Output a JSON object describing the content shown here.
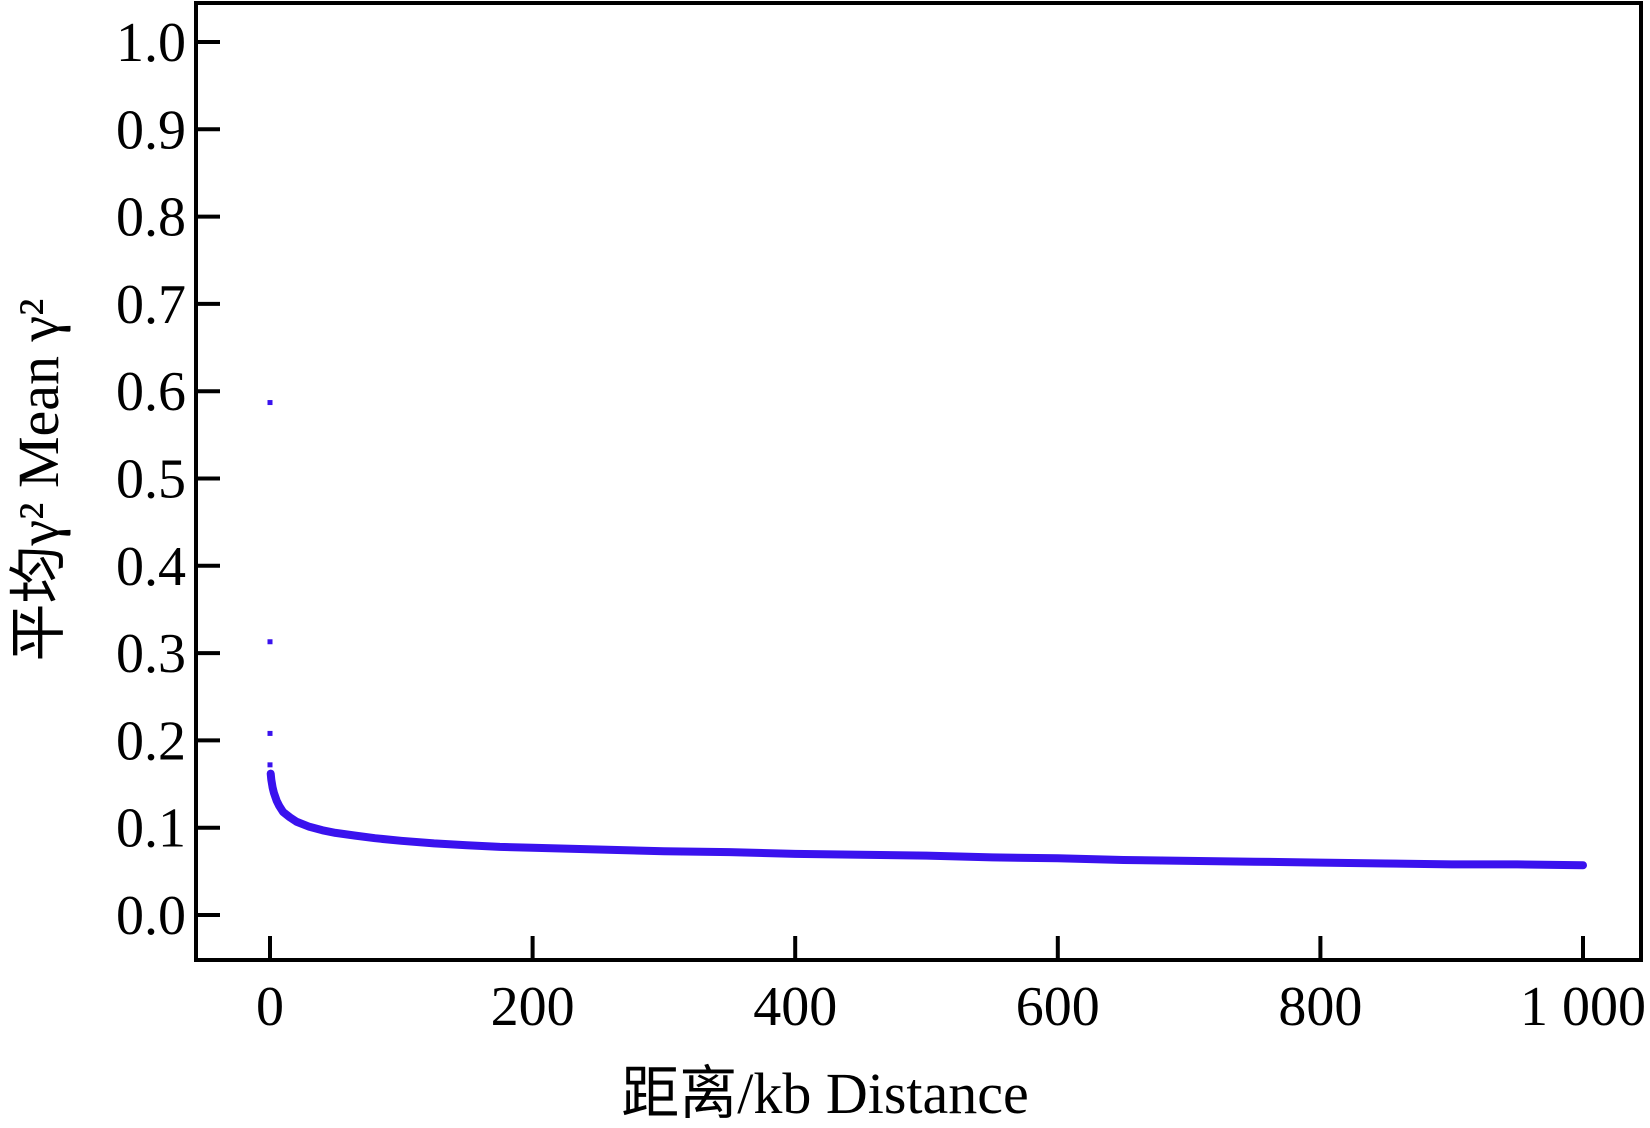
{
  "chart_data": {
    "type": "scatter",
    "title": "",
    "xlabel": "距离/kb Distance",
    "ylabel": "平均γ² Mean γ²",
    "xlim": [
      -57,
      1045
    ],
    "ylim": [
      -0.05,
      1.05
    ],
    "xticks": [
      0,
      200,
      400,
      600,
      800,
      1000
    ],
    "xtick_labels": [
      "0",
      "200",
      "400",
      "600",
      "800",
      "1 000"
    ],
    "yticks": [
      0.0,
      0.1,
      0.2,
      0.3,
      0.4,
      0.5,
      0.6,
      0.7,
      0.8,
      0.9,
      1.0
    ],
    "ytick_labels": [
      "0.0",
      "0.1",
      "0.2",
      "0.3",
      "0.4",
      "0.5",
      "0.6",
      "0.7",
      "0.8",
      "0.9",
      "1.0"
    ],
    "grid": false,
    "marker_color": "#3a12ee",
    "series": [
      {
        "x": [
          0,
          0,
          0,
          0,
          0.5,
          1,
          2,
          3,
          5,
          7,
          10,
          15,
          20,
          30,
          40,
          50,
          65,
          80,
          100,
          125,
          150,
          175,
          200,
          250,
          300,
          350,
          400,
          450,
          500,
          550,
          600,
          650,
          700,
          750,
          800,
          850,
          900,
          950,
          1000
        ],
        "y": [
          0.587,
          0.313,
          0.208,
          0.172,
          0.162,
          0.155,
          0.146,
          0.14,
          0.131,
          0.125,
          0.118,
          0.112,
          0.107,
          0.101,
          0.097,
          0.094,
          0.091,
          0.088,
          0.085,
          0.082,
          0.08,
          0.078,
          0.077,
          0.075,
          0.073,
          0.072,
          0.07,
          0.069,
          0.068,
          0.066,
          0.065,
          0.063,
          0.062,
          0.061,
          0.06,
          0.059,
          0.058,
          0.058,
          0.057
        ]
      }
    ]
  }
}
